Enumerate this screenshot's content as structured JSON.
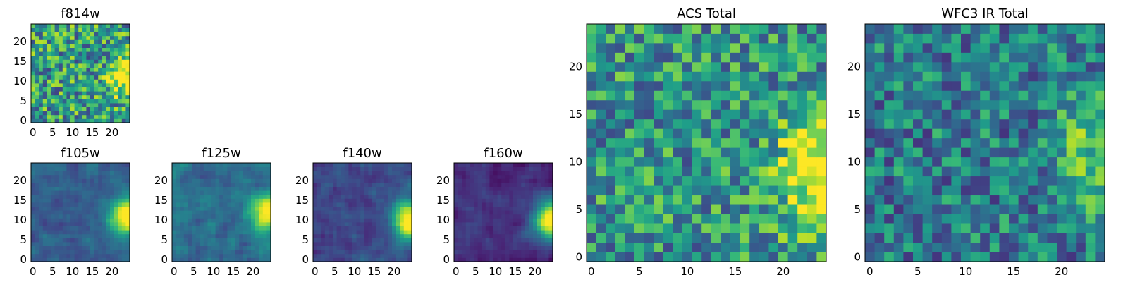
{
  "chart_data": [
    {
      "type": "heatmap",
      "title": "f814w",
      "xticks": [
        "0",
        "5",
        "10",
        "15",
        "20"
      ],
      "yticks": [
        "0",
        "5",
        "10",
        "15",
        "20"
      ],
      "xlim": [
        -0.5,
        24.5
      ],
      "ylim": [
        -0.5,
        24.5
      ],
      "grid_size": 25,
      "colormap": "viridis",
      "hotspot": "right edge, rows 8-14"
    },
    {
      "type": "heatmap",
      "title": "f105w",
      "xticks": [
        "0",
        "5",
        "10",
        "15",
        "20"
      ],
      "yticks": [
        "0",
        "5",
        "10",
        "15",
        "20"
      ],
      "xlim": [
        -0.5,
        24.5
      ],
      "ylim": [
        -0.5,
        24.5
      ],
      "grid_size": 25,
      "colormap": "viridis",
      "hotspot": "right edge, rows 8-14"
    },
    {
      "type": "heatmap",
      "title": "f125w",
      "xticks": [
        "0",
        "5",
        "10",
        "15",
        "20"
      ],
      "yticks": [
        "0",
        "5",
        "10",
        "15",
        "20"
      ],
      "xlim": [
        -0.5,
        24.5
      ],
      "ylim": [
        -0.5,
        24.5
      ],
      "grid_size": 25,
      "colormap": "viridis",
      "hotspot": "right edge, rows 8-15"
    },
    {
      "type": "heatmap",
      "title": "f140w",
      "xticks": [
        "0",
        "5",
        "10",
        "15",
        "20"
      ],
      "yticks": [
        "0",
        "5",
        "10",
        "15",
        "20"
      ],
      "xlim": [
        -0.5,
        24.5
      ],
      "ylim": [
        -0.5,
        24.5
      ],
      "grid_size": 25,
      "colormap": "viridis",
      "hotspot": "right edge, rows 7-14"
    },
    {
      "type": "heatmap",
      "title": "f160w",
      "xticks": [
        "0",
        "5",
        "10",
        "15",
        "20"
      ],
      "yticks": [
        "0",
        "5",
        "10",
        "15",
        "20"
      ],
      "xlim": [
        -0.5,
        24.5
      ],
      "ylim": [
        -0.5,
        24.5
      ],
      "grid_size": 25,
      "colormap": "viridis",
      "hotspot": "right edge, rows 6-14"
    },
    {
      "type": "heatmap",
      "title": "ACS Total",
      "xticks": [
        "0",
        "5",
        "10",
        "15",
        "20"
      ],
      "yticks": [
        "0",
        "5",
        "10",
        "15",
        "20"
      ],
      "xlim": [
        -0.5,
        24.5
      ],
      "ylim": [
        -0.5,
        24.5
      ],
      "grid_size": 25,
      "colormap": "viridis",
      "hotspot": "right side, rows 4-14"
    },
    {
      "type": "heatmap",
      "title": "WFC3 IR Total",
      "xticks": [
        "0",
        "5",
        "10",
        "15",
        "20"
      ],
      "yticks": [
        "0",
        "5",
        "10",
        "15",
        "20"
      ],
      "xlim": [
        -0.5,
        24.5
      ],
      "ylim": [
        -0.5,
        24.5
      ],
      "grid_size": 25,
      "colormap": "viridis",
      "hotspot": "right side, rows 8-14"
    }
  ]
}
